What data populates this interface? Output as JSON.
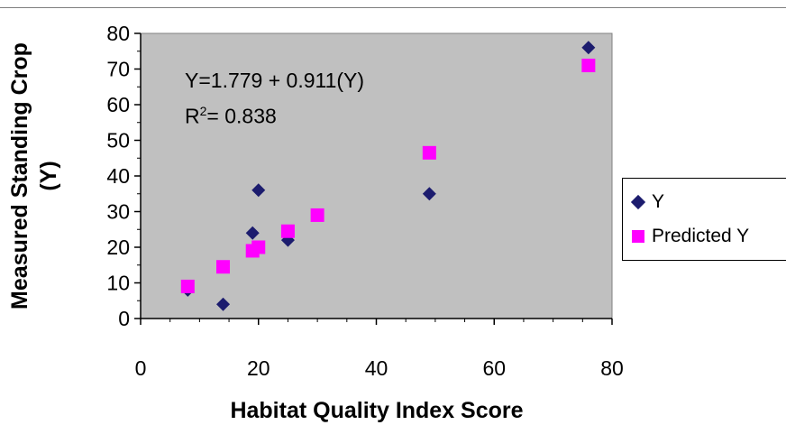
{
  "chart_data": {
    "type": "scatter",
    "xlabel": "Habitat Quality Index Score",
    "ylabel": "Measured Standing Crop (Y)",
    "xlim": [
      0,
      80
    ],
    "ylim": [
      0,
      80
    ],
    "xticks": [
      "0",
      "20",
      "40",
      "60",
      "80"
    ],
    "yticks": [
      "0",
      "10",
      "20",
      "30",
      "40",
      "50",
      "60",
      "70",
      "80"
    ],
    "annotation": {
      "equation": "Y=1.779 + 0.911(Y)",
      "r2_label": "R",
      "r2_sup": "2",
      "r2_value": "= 0.838"
    },
    "legend_position": "right",
    "series": [
      {
        "name": "Y",
        "marker": "diamond",
        "color": "#1c1c6e",
        "points": [
          [
            8,
            8
          ],
          [
            14,
            4
          ],
          [
            19,
            24
          ],
          [
            20,
            36
          ],
          [
            25,
            22
          ],
          [
            49,
            35
          ],
          [
            76,
            76
          ]
        ]
      },
      {
        "name": "Predicted Y",
        "marker": "square",
        "color": "#ff00ff",
        "points": [
          [
            8,
            9
          ],
          [
            14,
            14.5
          ],
          [
            19,
            19
          ],
          [
            20,
            20
          ],
          [
            25,
            24.5
          ],
          [
            30,
            29
          ],
          [
            49,
            46.5
          ],
          [
            76,
            71
          ]
        ]
      }
    ],
    "plot_background": "#c0c0c0"
  }
}
